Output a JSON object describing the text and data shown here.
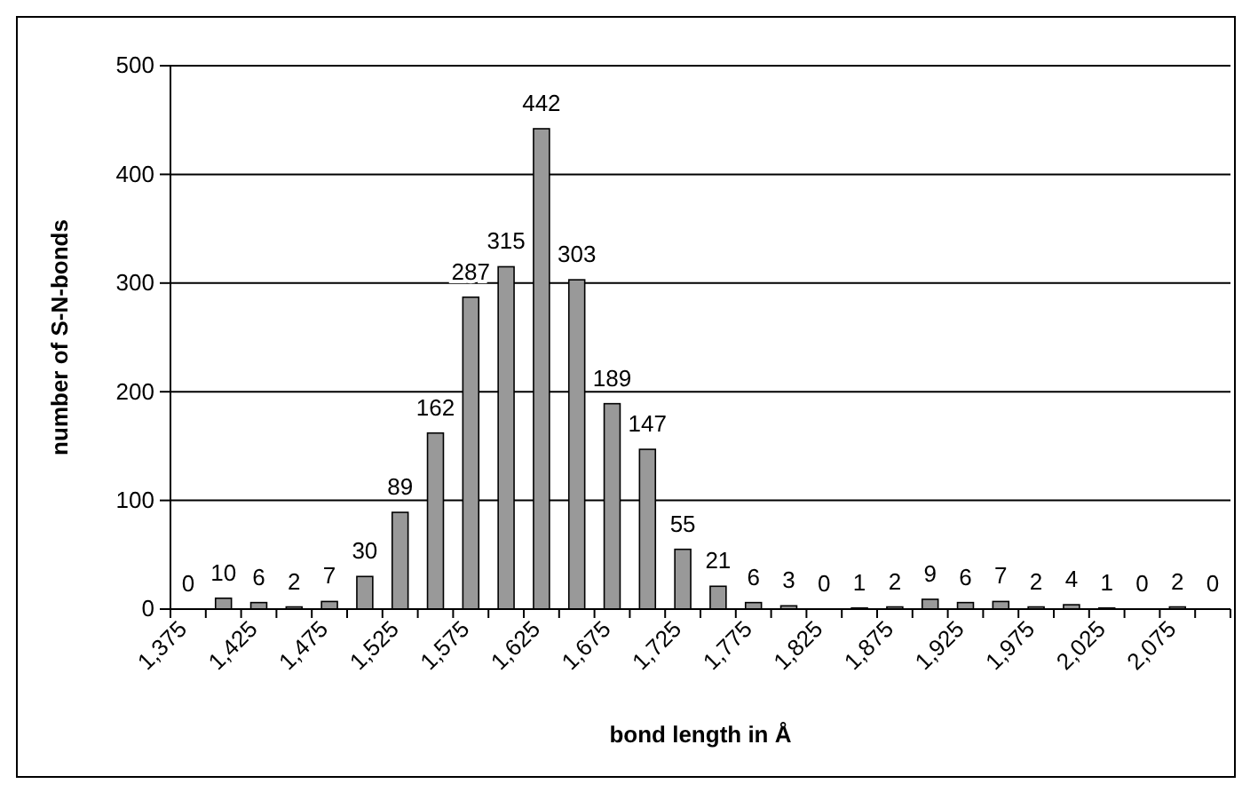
{
  "chart_data": {
    "type": "bar",
    "xlabel": "bond length in Å",
    "ylabel": "number of S-N-bonds",
    "categories": [
      "1,375",
      null,
      "1,425",
      null,
      "1,475",
      null,
      "1,525",
      null,
      "1,575",
      null,
      "1,625",
      null,
      "1,675",
      null,
      "1,725",
      null,
      "1,775",
      null,
      "1,825",
      null,
      "1,875",
      null,
      "1,925",
      null,
      "1,975",
      null,
      "2,025",
      null,
      "2,075",
      null
    ],
    "values": [
      0,
      10,
      6,
      2,
      7,
      30,
      89,
      162,
      287,
      315,
      442,
      303,
      189,
      147,
      55,
      21,
      6,
      3,
      0,
      1,
      2,
      9,
      6,
      7,
      2,
      4,
      1,
      0,
      2,
      0
    ],
    "color": "#999999",
    "ylim": [
      0,
      500
    ],
    "yticks": [
      0,
      100,
      200,
      300,
      400,
      500
    ],
    "grid": "y",
    "data_labels": true
  }
}
